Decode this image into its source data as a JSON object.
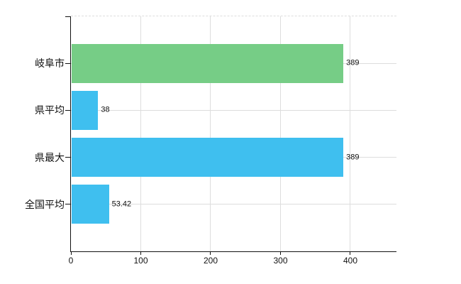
{
  "chart_data": {
    "type": "bar",
    "orientation": "horizontal",
    "title": "",
    "xlabel": "",
    "ylabel": "",
    "categories": [
      "岐阜市",
      "県平均",
      "県最大",
      "全国平均"
    ],
    "values": [
      389,
      38,
      389,
      53.42
    ],
    "value_labels": [
      "389",
      "38",
      "389",
      "53.42"
    ],
    "bar_colors": [
      "#76CD86",
      "#3FBFEF",
      "#3FBFEF",
      "#3FBFEF"
    ],
    "xlim": [
      0,
      466
    ],
    "xticks": [
      0,
      100,
      200,
      300,
      400
    ],
    "xtick_labels": [
      "0",
      "100",
      "200",
      "300",
      "400"
    ],
    "grid": true,
    "legend": false,
    "grid_color": "#dddddd",
    "axis_color": "#111111",
    "text_color": "#111111",
    "background_color": "#ffffff"
  }
}
